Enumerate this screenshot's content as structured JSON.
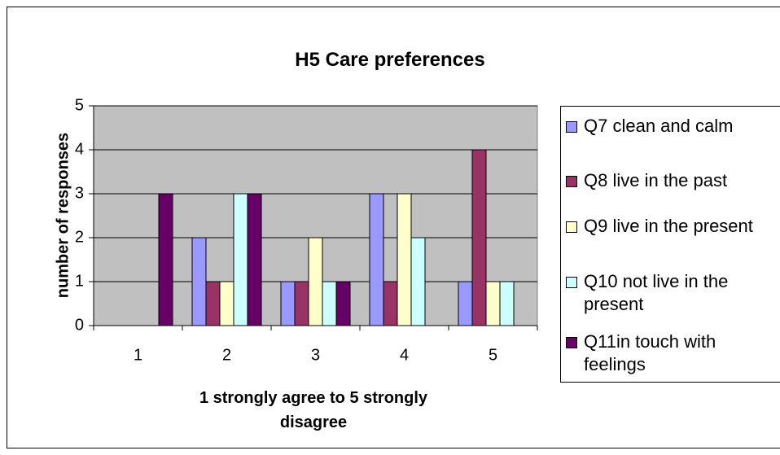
{
  "chart_data": {
    "type": "bar",
    "title": "H5 Care preferences",
    "xlabel": "1 strongly agree to 5 strongly disagree",
    "ylabel": "number of responses",
    "categories": [
      "1",
      "2",
      "3",
      "4",
      "5"
    ],
    "series": [
      {
        "name": "Q7 clean and calm",
        "color": "#9999ff",
        "values": [
          0,
          2,
          1,
          3,
          1
        ]
      },
      {
        "name": "Q8 live in the past",
        "color": "#993366",
        "values": [
          0,
          1,
          1,
          1,
          4
        ]
      },
      {
        "name": "Q9 live in the present",
        "color": "#ffffcc",
        "values": [
          0,
          1,
          2,
          3,
          1
        ]
      },
      {
        "name": "Q10 not live in the present",
        "color": "#ccffff",
        "values": [
          0,
          3,
          1,
          2,
          1
        ]
      },
      {
        "name": "Q11in touch with feelings",
        "color": "#660066",
        "values": [
          3,
          3,
          1,
          0,
          0
        ]
      }
    ],
    "ylim": [
      0,
      5
    ],
    "yticks": [
      0,
      1,
      2,
      3,
      4,
      5
    ],
    "grid": true,
    "legend": "right"
  }
}
